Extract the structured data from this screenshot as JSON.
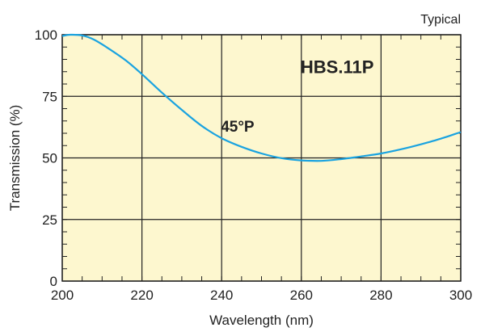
{
  "chart_data": {
    "type": "line",
    "note": "Typical",
    "xlabel": "Wavelength (nm)",
    "ylabel": "Transmission (%)",
    "xlim": [
      200,
      300
    ],
    "ylim": [
      0,
      100
    ],
    "x_ticks": [
      200,
      220,
      240,
      260,
      280,
      300
    ],
    "y_ticks": [
      0,
      25,
      50,
      75,
      100
    ],
    "grid": true,
    "plot_background": "#fdf7cf",
    "annotations": [
      {
        "text": "HBS.11P",
        "x": 269,
        "y": 87
      },
      {
        "text": "45°P",
        "x": 244,
        "y": 63
      }
    ],
    "series": [
      {
        "color": "#1aa3e0",
        "x": [
          200,
          202,
          205,
          208,
          212,
          216,
          220,
          225,
          230,
          235,
          240,
          245,
          250,
          255,
          260,
          265,
          270,
          275,
          280,
          285,
          290,
          295,
          300
        ],
        "y": [
          99.5,
          100,
          99.7,
          98,
          94,
          89.5,
          84,
          76.5,
          69.5,
          63,
          58,
          54.5,
          51.8,
          49.9,
          49,
          48.8,
          49.5,
          50.6,
          51.8,
          53.5,
          55.5,
          57.8,
          60.5
        ]
      }
    ]
  }
}
